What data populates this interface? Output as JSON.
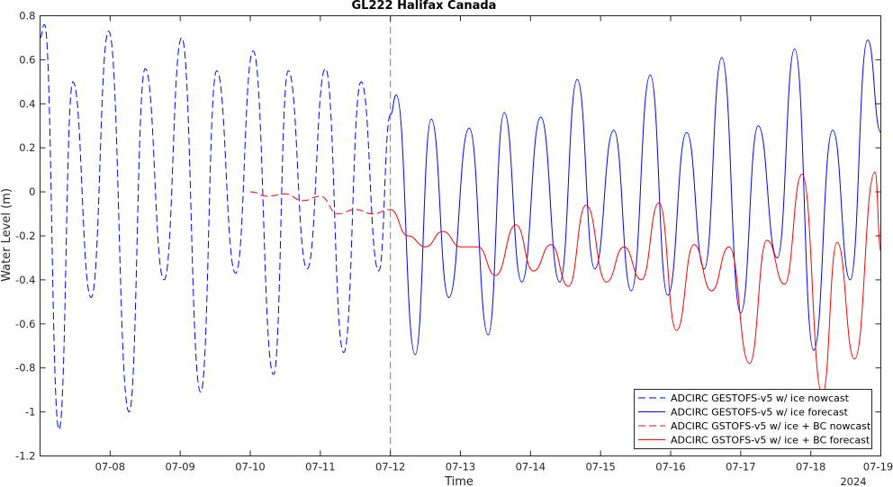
{
  "chart_data": {
    "type": "line",
    "title": "GL222 Halifax Canada",
    "xlabel": "Time",
    "ylabel": "Water Level (m)",
    "year_label": "2024",
    "xlim": [
      "2024-07-07 00:00",
      "2024-07-19 00:00"
    ],
    "ylim": [
      -1.2,
      0.8
    ],
    "yticks": [
      -1.2,
      -1,
      -0.8,
      -0.6,
      -0.4,
      -0.2,
      0,
      0.2,
      0.4,
      0.6,
      0.8
    ],
    "ytick_labels": [
      "-1.2",
      "-1",
      "-0.8",
      "-0.6",
      "-0.4",
      "-0.2",
      "0",
      "0.2",
      "0.4",
      "0.6",
      "0.8"
    ],
    "xticks": [
      "2024-07-08",
      "2024-07-09",
      "2024-07-10",
      "2024-07-11",
      "2024-07-12",
      "2024-07-13",
      "2024-07-14",
      "2024-07-15",
      "2024-07-16",
      "2024-07-17",
      "2024-07-18",
      "2024-07-19"
    ],
    "xtick_labels": [
      "07-08",
      "07-09",
      "07-10",
      "07-11",
      "07-12",
      "07-13",
      "07-14",
      "07-15",
      "07-16",
      "07-17",
      "07-18",
      "07-19"
    ],
    "vline": "2024-07-12 00:00",
    "grid": false,
    "legend_position": "bottom-right",
    "series": [
      {
        "name": "ADCIRC GESTOFS-v5 w/ ice nowcast",
        "color": "#0000ff",
        "dash": "dashed",
        "x": [
          "2024-07-07 00:00",
          "2024-07-07 01:30",
          "2024-07-07 06:30",
          "2024-07-07 11:15",
          "2024-07-07 17:30",
          "2024-07-07 23:30",
          "2024-07-08 06:30",
          "2024-07-08 12:00",
          "2024-07-08 18:30",
          "2024-07-09 00:30",
          "2024-07-09 07:00",
          "2024-07-09 12:30",
          "2024-07-09 19:00",
          "2024-07-10 01:00",
          "2024-07-10 08:00",
          "2024-07-10 13:00",
          "2024-07-10 19:30",
          "2024-07-11 01:45",
          "2024-07-11 08:00",
          "2024-07-11 14:00",
          "2024-07-11 20:00",
          "2024-07-12 00:00"
        ],
        "y": [
          0.7,
          0.76,
          -1.08,
          0.5,
          -0.48,
          0.73,
          -1.0,
          0.56,
          -0.4,
          0.7,
          -0.91,
          0.55,
          -0.37,
          0.64,
          -0.83,
          0.55,
          -0.35,
          0.56,
          -0.73,
          0.5,
          -0.36,
          0.35
        ]
      },
      {
        "name": "ADCIRC GESTOFS-v5 w/ ice forecast",
        "color": "#0000ff",
        "dash": "solid",
        "x": [
          "2024-07-12 00:00",
          "2024-07-12 02:00",
          "2024-07-12 08:30",
          "2024-07-12 14:00",
          "2024-07-12 20:00",
          "2024-07-13 03:00",
          "2024-07-13 09:30",
          "2024-07-13 15:00",
          "2024-07-13 21:00",
          "2024-07-14 03:30",
          "2024-07-14 10:00",
          "2024-07-14 16:00",
          "2024-07-14 22:00",
          "2024-07-15 04:30",
          "2024-07-15 10:30",
          "2024-07-15 17:00",
          "2024-07-15 23:00",
          "2024-07-16 05:30",
          "2024-07-16 11:30",
          "2024-07-16 17:30",
          "2024-07-17 00:00",
          "2024-07-17 06:00",
          "2024-07-17 12:30",
          "2024-07-17 18:30",
          "2024-07-18 01:00",
          "2024-07-18 07:30",
          "2024-07-18 13:30",
          "2024-07-18 19:30",
          "2024-07-19 00:00"
        ],
        "y": [
          0.35,
          0.44,
          -0.74,
          0.33,
          -0.48,
          0.29,
          -0.65,
          0.36,
          -0.41,
          0.34,
          -0.41,
          0.51,
          -0.35,
          0.28,
          -0.45,
          0.53,
          -0.47,
          0.27,
          -0.35,
          0.61,
          -0.55,
          0.3,
          -0.3,
          0.65,
          -0.72,
          0.28,
          -0.4,
          0.69,
          0.27
        ]
      },
      {
        "name": "ADCIRC GSTOFS-v5 w/ ice + BC nowcast",
        "color": "#ff0000",
        "dash": "dashed",
        "x": [
          "2024-07-10 00:00",
          "2024-07-10 06:00",
          "2024-07-10 12:00",
          "2024-07-10 18:00",
          "2024-07-11 00:00",
          "2024-07-11 06:00",
          "2024-07-11 12:00",
          "2024-07-11 18:00",
          "2024-07-12 00:00"
        ],
        "y": [
          0.0,
          -0.02,
          -0.01,
          -0.04,
          -0.02,
          -0.1,
          -0.08,
          -0.1,
          -0.08
        ]
      },
      {
        "name": "ADCIRC GSTOFS-v5 w/ ice + BC forecast",
        "color": "#ff0000",
        "dash": "solid",
        "x": [
          "2024-07-12 00:00",
          "2024-07-12 06:00",
          "2024-07-12 12:00",
          "2024-07-12 18:00",
          "2024-07-13 00:00",
          "2024-07-13 06:00",
          "2024-07-13 12:00",
          "2024-07-13 19:00",
          "2024-07-14 01:00",
          "2024-07-14 07:00",
          "2024-07-14 13:00",
          "2024-07-14 19:00",
          "2024-07-15 02:00",
          "2024-07-15 08:00",
          "2024-07-15 14:00",
          "2024-07-15 20:00",
          "2024-07-16 02:00",
          "2024-07-16 08:00",
          "2024-07-16 14:00",
          "2024-07-16 20:00",
          "2024-07-17 03:00",
          "2024-07-17 09:00",
          "2024-07-17 15:00",
          "2024-07-17 21:00",
          "2024-07-18 04:00",
          "2024-07-18 09:00",
          "2024-07-18 15:00",
          "2024-07-18 22:00",
          "2024-07-19 00:00"
        ],
        "y": [
          -0.08,
          -0.2,
          -0.25,
          -0.18,
          -0.25,
          -0.25,
          -0.38,
          -0.15,
          -0.36,
          -0.24,
          -0.43,
          -0.06,
          -0.41,
          -0.25,
          -0.4,
          -0.05,
          -0.63,
          -0.24,
          -0.45,
          -0.25,
          -0.78,
          -0.22,
          -0.42,
          0.08,
          -0.92,
          -0.23,
          -0.76,
          0.09,
          -0.27
        ]
      }
    ]
  }
}
